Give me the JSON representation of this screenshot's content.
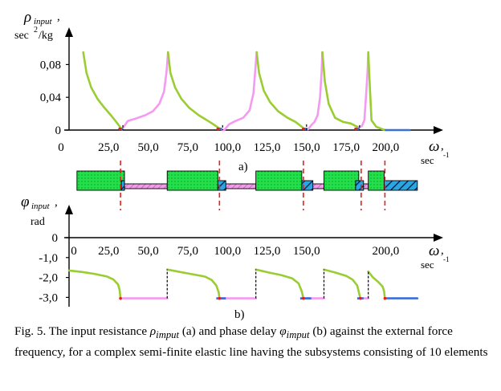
{
  "colors": {
    "green": "#9ACD32",
    "pink": "#F49AF0",
    "blue": "#3A6FD8",
    "red": "#E8201C",
    "band_green": "#22E04A",
    "band_pink": "#F29BE8",
    "band_blue": "#2AA6E0"
  },
  "chart_data": [
    {
      "type": "line",
      "panel_label": "a)",
      "ylabel": "ρinput , sec2/kg",
      "ylabel_symbol": "ρ",
      "ylabel_sub": "input",
      "ylabel_comma": ",",
      "ylabel_unit_a": "sec",
      "ylabel_unit_sup": "2",
      "ylabel_unit_b": "/kg",
      "xlabel_symbol": "ω",
      "xlabel_comma": ",",
      "xlabel_unit": "sec",
      "xlabel_unit_sup": "-1",
      "xlim": [
        0,
        225
      ],
      "ylim": [
        0,
        0.1
      ],
      "x_ticks": [
        "0",
        "25,0",
        "50,0",
        "75,0",
        "100,0",
        "125,0",
        "150,0",
        "175,0",
        "200,0"
      ],
      "x_tick_values": [
        0,
        25,
        50,
        75,
        100,
        125,
        150,
        175,
        200
      ],
      "y_ticks": [
        "0",
        "0,04",
        "0,08"
      ],
      "y_tick_values": [
        0,
        0.04,
        0.08
      ],
      "segments": [
        {
          "color": "green",
          "points": [
            [
              9,
              0.095
            ],
            [
              11,
              0.07
            ],
            [
              14,
              0.052
            ],
            [
              18,
              0.038
            ],
            [
              22,
              0.028
            ],
            [
              26,
              0.019
            ],
            [
              29,
              0.012
            ],
            [
              31,
              0.007
            ],
            [
              32.5,
              0.003
            ],
            [
              33.5,
              0.001
            ]
          ]
        },
        {
          "color": "pink",
          "points": [
            [
              33.5,
              0.001
            ],
            [
              37,
              0.011
            ],
            [
              42,
              0.014
            ],
            [
              48,
              0.018
            ],
            [
              53,
              0.023
            ],
            [
              57,
              0.032
            ],
            [
              60,
              0.047
            ],
            [
              61.5,
              0.07
            ],
            [
              62.5,
              0.095
            ]
          ]
        },
        {
          "color": "green",
          "points": [
            [
              62.5,
              0.095
            ],
            [
              64,
              0.07
            ],
            [
              67,
              0.052
            ],
            [
              71,
              0.038
            ],
            [
              76,
              0.027
            ],
            [
              82,
              0.018
            ],
            [
              88,
              0.011
            ],
            [
              92,
              0.006
            ],
            [
              95,
              0.002
            ]
          ]
        },
        {
          "color": "pink",
          "points": [
            [
              95,
              0.002
            ],
            [
              98,
              0.0
            ],
            [
              101,
              0.007
            ],
            [
              105,
              0.011
            ],
            [
              110,
              0.015
            ],
            [
              114,
              0.024
            ],
            [
              116.5,
              0.045
            ],
            [
              117.5,
              0.07
            ],
            [
              118.5,
              0.095
            ]
          ]
        },
        {
          "color": "green",
          "points": [
            [
              118.5,
              0.095
            ],
            [
              120,
              0.07
            ],
            [
              123,
              0.048
            ],
            [
              127,
              0.034
            ],
            [
              132,
              0.023
            ],
            [
              138,
              0.015
            ],
            [
              143,
              0.01
            ],
            [
              147,
              0.004
            ],
            [
              148,
              0.002
            ]
          ]
        },
        {
          "color": "pink",
          "points": [
            [
              148,
              0.002
            ],
            [
              151,
              0.001
            ],
            [
              153,
              0.006
            ],
            [
              155,
              0.01
            ],
            [
              157,
              0.018
            ],
            [
              158.5,
              0.04
            ],
            [
              159.5,
              0.07
            ],
            [
              160,
              0.095
            ]
          ]
        },
        {
          "color": "green",
          "points": [
            [
              160,
              0.095
            ],
            [
              161.5,
              0.06
            ],
            [
              164,
              0.032
            ],
            [
              168,
              0.015
            ],
            [
              173,
              0.01
            ],
            [
              178,
              0.008
            ],
            [
              181,
              0.005
            ],
            [
              183,
              0.003
            ]
          ]
        },
        {
          "color": "pink",
          "points": [
            [
              183,
              0.003
            ],
            [
              185,
              0.005
            ],
            [
              186.5,
              0.012
            ],
            [
              187.5,
              0.04
            ],
            [
              188.5,
              0.07
            ],
            [
              189,
              0.095
            ]
          ]
        },
        {
          "color": "green",
          "points": [
            [
              189,
              0.095
            ],
            [
              189.8,
              0.06
            ],
            [
              191,
              0.012
            ],
            [
              194,
              0.004
            ],
            [
              198,
              0.001
            ],
            [
              200,
              0.0
            ]
          ]
        },
        {
          "color": "blue",
          "points": [
            [
              200,
              0.0
            ],
            [
              215,
              0.0
            ]
          ]
        }
      ],
      "blue_stubs": [
        [
          32,
          34
        ],
        [
          94,
          96.5
        ],
        [
          148,
          150.5
        ],
        [
          181,
          183.5
        ]
      ],
      "dashed_drops": [
        [
          34,
          0.006,
          0.0
        ],
        [
          97,
          0.006,
          0.0
        ],
        [
          150,
          0.007,
          0.0
        ],
        [
          183.5,
          0.006,
          0.0
        ]
      ]
    },
    {
      "type": "band",
      "xlim": [
        0,
        225
      ],
      "bands": [
        {
          "kind": "green",
          "from": 5,
          "to": 35
        },
        {
          "kind": "pink",
          "from": 35,
          "to": 62
        },
        {
          "kind": "green",
          "from": 62,
          "to": 94
        },
        {
          "kind": "pink",
          "from": 94,
          "to": 118
        },
        {
          "kind": "green",
          "from": 118,
          "to": 147
        },
        {
          "kind": "pink",
          "from": 147,
          "to": 161
        },
        {
          "kind": "green",
          "from": 161,
          "to": 183
        },
        {
          "kind": "pink",
          "from": 183,
          "to": 189
        },
        {
          "kind": "green",
          "from": 189,
          "to": 199
        },
        {
          "kind": "blue",
          "from": 199,
          "to": 220
        }
      ],
      "blue_pieces": [
        [
          33,
          35
        ],
        [
          94,
          99
        ],
        [
          147,
          154
        ],
        [
          181,
          186
        ]
      ],
      "red_dashes": [
        32.5,
        95,
        148,
        184.5,
        199.5
      ]
    },
    {
      "type": "line",
      "panel_label": "b)",
      "ylabel": "φinput , rad",
      "ylabel_symbol": "φ",
      "ylabel_sub": "input",
      "ylabel_comma": ",",
      "ylabel_unit": "rad",
      "xlabel_symbol": "ω",
      "xlabel_comma": ",",
      "xlabel_unit": "sec",
      "xlabel_unit_sup": "-1",
      "xlim": [
        0,
        225
      ],
      "ylim": [
        -3.4,
        0.5
      ],
      "x_ticks": [
        "0",
        "25,0",
        "50,0",
        "75,0",
        "100,0",
        "125,0",
        "150,0",
        "200,0"
      ],
      "x_tick_values": [
        0,
        25,
        50,
        75,
        100,
        125,
        150,
        200
      ],
      "y_ticks": [
        "0",
        "-1,0",
        "-2,0",
        "-3,0"
      ],
      "y_tick_values": [
        0,
        -1,
        -2,
        -3
      ],
      "segments": [
        {
          "color": "green",
          "points": [
            [
              0,
              -1.65
            ],
            [
              8,
              -1.72
            ],
            [
              16,
              -1.82
            ],
            [
              24,
              -1.95
            ],
            [
              28,
              -2.1
            ],
            [
              31,
              -2.35
            ],
            [
              32,
              -2.65
            ],
            [
              32.5,
              -3.05
            ]
          ]
        },
        {
          "color": "pink",
          "points": [
            [
              32.5,
              -3.05
            ],
            [
              62,
              -3.05
            ]
          ]
        },
        {
          "color": "green",
          "points": [
            [
              62,
              -1.6
            ],
            [
              70,
              -1.72
            ],
            [
              78,
              -1.84
            ],
            [
              86,
              -1.96
            ],
            [
              90,
              -2.12
            ],
            [
              93,
              -2.4
            ],
            [
              94.5,
              -2.75
            ],
            [
              95,
              -3.05
            ]
          ]
        },
        {
          "color": "pink",
          "points": [
            [
              95,
              -3.05
            ],
            [
              118,
              -3.05
            ]
          ]
        },
        {
          "color": "green",
          "points": [
            [
              118,
              -1.6
            ],
            [
              126,
              -1.75
            ],
            [
              134,
              -1.88
            ],
            [
              141,
              -2.05
            ],
            [
              145,
              -2.3
            ],
            [
              147,
              -2.7
            ],
            [
              148,
              -3.05
            ]
          ]
        },
        {
          "color": "pink",
          "points": [
            [
              148,
              -3.05
            ],
            [
              161,
              -3.05
            ]
          ]
        },
        {
          "color": "green",
          "points": [
            [
              161,
              -1.6
            ],
            [
              168,
              -1.75
            ],
            [
              175,
              -1.92
            ],
            [
              179,
              -2.1
            ],
            [
              182,
              -2.4
            ],
            [
              184,
              -3.05
            ]
          ]
        },
        {
          "color": "pink",
          "points": [
            [
              184,
              -3.05
            ],
            [
              189,
              -3.05
            ]
          ]
        },
        {
          "color": "green",
          "points": [
            [
              189,
              -1.7
            ],
            [
              192,
              -2.0
            ],
            [
              195,
              -2.2
            ],
            [
              198,
              -2.45
            ],
            [
              199,
              -2.7
            ],
            [
              199.5,
              -3.05
            ]
          ]
        },
        {
          "color": "blue",
          "points": [
            [
              199.5,
              -3.05
            ],
            [
              220,
              -3.05
            ]
          ]
        }
      ],
      "blue_stubs": [
        [
          93,
          99
        ],
        [
          146,
          153
        ],
        [
          182,
          186
        ]
      ],
      "dashed_jumps": [
        [
          62,
          -3.05,
          -1.6
        ],
        [
          118,
          -3.05,
          -1.6
        ],
        [
          161,
          -3.05,
          -1.6
        ],
        [
          189,
          -3.05,
          -1.7
        ]
      ]
    }
  ],
  "caption": {
    "part1": "Fig. 5. The input resistance ",
    "rho": "ρ",
    "rho_sub": "imput",
    "part2": "  (a) and phase delay ",
    "phi": "φ",
    "phi_sub": "imput",
    "part3": " (b) against the external force frequency, for a complex semi-finite elastic line having the subsystems consisting of 10 elements"
  }
}
